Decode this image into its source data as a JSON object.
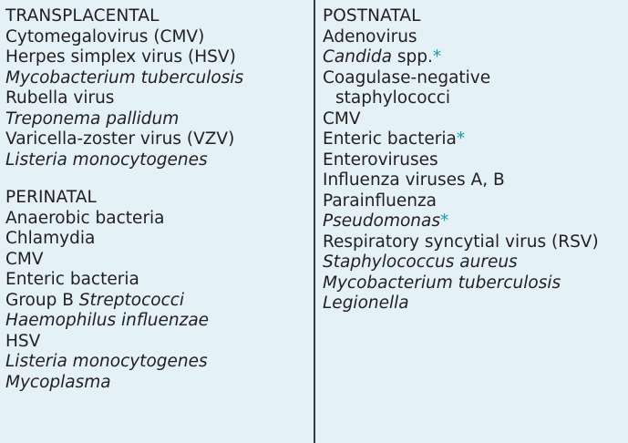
{
  "left": {
    "groups": [
      {
        "heading": "TRANSPLACENTAL",
        "items": [
          {
            "pre": "Cytomegalovirus (CMV)",
            "it": "",
            "post": "",
            "star": ""
          },
          {
            "pre": "Herpes simplex virus (HSV)",
            "it": "",
            "post": "",
            "star": ""
          },
          {
            "pre": "",
            "it": "Mycobacterium tuberculosis",
            "post": "",
            "star": ""
          },
          {
            "pre": "Rubella virus",
            "it": "",
            "post": "",
            "star": ""
          },
          {
            "pre": "",
            "it": "Treponema pallidum",
            "post": "",
            "star": ""
          },
          {
            "pre": "Varicella-zoster virus (VZV)",
            "it": "",
            "post": "",
            "star": ""
          },
          {
            "pre": "",
            "it": "Listeria monocytogenes",
            "post": "",
            "star": ""
          }
        ]
      },
      {
        "heading": "PERINATAL",
        "items": [
          {
            "pre": "Anaerobic bacteria",
            "it": "",
            "post": "",
            "star": ""
          },
          {
            "pre": "Chlamydia",
            "it": "",
            "post": "",
            "star": ""
          },
          {
            "pre": "CMV",
            "it": "",
            "post": "",
            "star": ""
          },
          {
            "pre": "Enteric bacteria",
            "it": "",
            "post": "",
            "star": ""
          },
          {
            "pre": "Group B ",
            "it": "Streptococci",
            "post": "",
            "star": ""
          },
          {
            "pre": "",
            "it": "Haemophilus influenzae",
            "post": "",
            "star": ""
          },
          {
            "pre": "HSV",
            "it": "",
            "post": "",
            "star": ""
          },
          {
            "pre": "",
            "it": "Listeria monocytogenes",
            "post": "",
            "star": ""
          },
          {
            "pre": "",
            "it": "Mycoplasma",
            "post": "",
            "star": ""
          }
        ]
      }
    ]
  },
  "right": {
    "groups": [
      {
        "heading": "POSTNATAL",
        "items": [
          {
            "pre": "Adenovirus",
            "it": "",
            "post": "",
            "star": ""
          },
          {
            "pre": "",
            "it": "Candida",
            "post": " spp.",
            "star": "*"
          },
          {
            "pre": "Coagulase-negative",
            "it": "",
            "post": "",
            "star": ""
          },
          {
            "pre": "staphylococci",
            "it": "",
            "post": "",
            "star": "",
            "indent": true
          },
          {
            "pre": "CMV",
            "it": "",
            "post": "",
            "star": ""
          },
          {
            "pre": "Enteric bacteria",
            "it": "",
            "post": "",
            "star": "*"
          },
          {
            "pre": "Enteroviruses",
            "it": "",
            "post": "",
            "star": ""
          },
          {
            "pre": "Influenza viruses A, B",
            "it": "",
            "post": "",
            "star": ""
          },
          {
            "pre": "Parainfluenza",
            "it": "",
            "post": "",
            "star": ""
          },
          {
            "pre": "",
            "it": "Pseudomonas",
            "post": "",
            "star": "*"
          },
          {
            "pre": "Respiratory syncytial virus (RSV)",
            "it": "",
            "post": "",
            "star": ""
          },
          {
            "pre": "",
            "it": "Staphylococcus aureus",
            "post": "",
            "star": ""
          },
          {
            "pre": "",
            "it": "Mycobacterium tuberculosis",
            "post": "",
            "star": ""
          },
          {
            "pre": "",
            "it": "Legionella",
            "post": "",
            "star": ""
          }
        ]
      }
    ]
  },
  "colors": {
    "background": "#e4f1f6",
    "text": "#231f20",
    "asterisk": "#1a9bb0",
    "divider": "#3a3a3a"
  }
}
